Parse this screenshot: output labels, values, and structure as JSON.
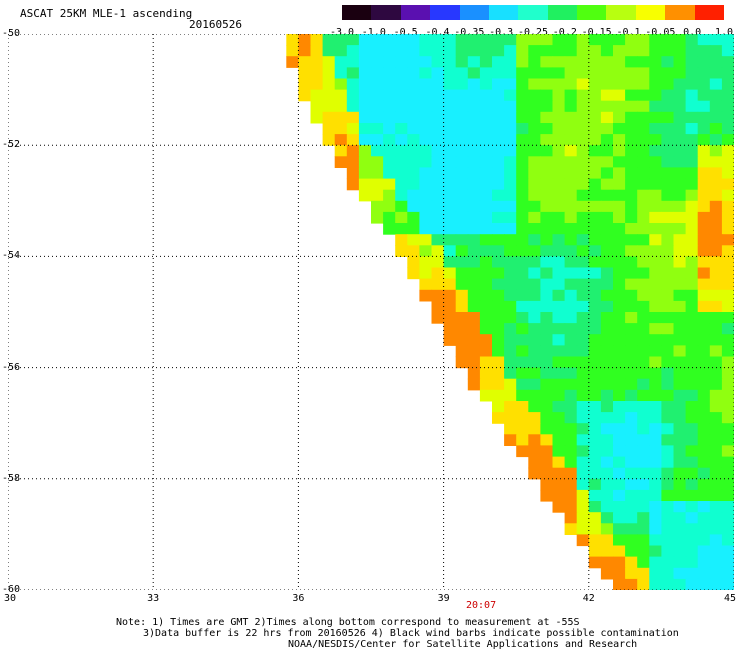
{
  "header": {
    "title": "ASCAT 25KM MLE-1 ascending",
    "date": "20160526"
  },
  "colorbar": {
    "tick_labels": [
      "-3.0",
      "-1.0",
      "-0.5",
      "-0.4",
      "-0.35",
      "-0.3",
      "-0.25",
      "-0.2",
      "-0.15",
      "-0.1",
      "-0.05",
      "0.0",
      "1.0"
    ],
    "colors": [
      "#1a0010",
      "#2e0840",
      "#5a10b0",
      "#2838ff",
      "#1a90ff",
      "#18e0ff",
      "#20ffcc",
      "#20f060",
      "#50ff10",
      "#b8ff10",
      "#f8ff00",
      "#ff9000",
      "#ff2000"
    ]
  },
  "map": {
    "lon_range": [
      30,
      45
    ],
    "lat_range": [
      -60,
      -50
    ],
    "x_tick_labels": [
      "30",
      "33",
      "36",
      "39",
      "42",
      "45"
    ],
    "y_tick_labels": [
      "-50",
      "-52",
      "-54",
      "-56",
      "-58",
      "-60"
    ],
    "pass_time": "20:07",
    "swath_edge": [
      [
        35.8,
        -50.0
      ],
      [
        36.6,
        -51.8
      ],
      [
        38.4,
        -54.1
      ],
      [
        39.6,
        -56.0
      ],
      [
        41.5,
        -58.6
      ],
      [
        42.8,
        -60.0
      ]
    ]
  },
  "footer": {
    "line1": "Note: 1) Times are GMT 2)Times along bottom correspond to measurement at -55S",
    "line2": "3)Data buffer is 22 hrs from 20160526 4) Black wind barbs indicate possible contamination",
    "line3": "NOAA/NESDIS/Center for Satellite Applications and Research"
  },
  "colors": {
    "pass_time": "#cc0000",
    "grid": "#000000"
  }
}
